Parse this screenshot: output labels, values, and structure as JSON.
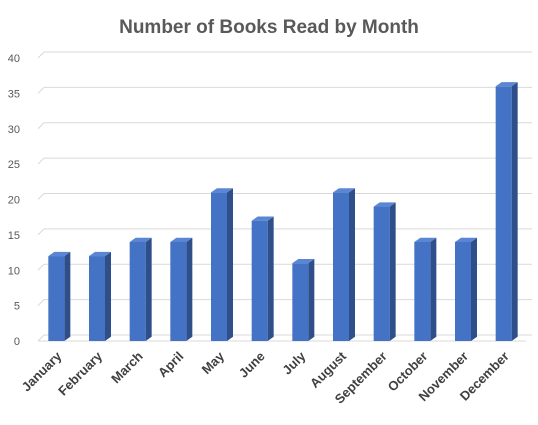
{
  "chart_data": {
    "type": "bar",
    "title": "Number of Books Read by Month",
    "xlabel": "",
    "ylabel": "",
    "categories": [
      "January",
      "February",
      "March",
      "April",
      "May",
      "June",
      "July",
      "August",
      "September",
      "October",
      "November",
      "December"
    ],
    "values": [
      12,
      12,
      14,
      14,
      21,
      17,
      11,
      21,
      19,
      14,
      14,
      36
    ],
    "ylim": [
      0,
      40
    ],
    "yticks": [
      0,
      5,
      10,
      15,
      20,
      25,
      30,
      35,
      40
    ],
    "grid": true,
    "legend": "none",
    "style": "3d-column",
    "colors": {
      "bar_front": "#4472c4",
      "bar_side": "#2e4f8a",
      "bar_top": "#5b86d3",
      "grid": "#d9d9d9"
    }
  }
}
